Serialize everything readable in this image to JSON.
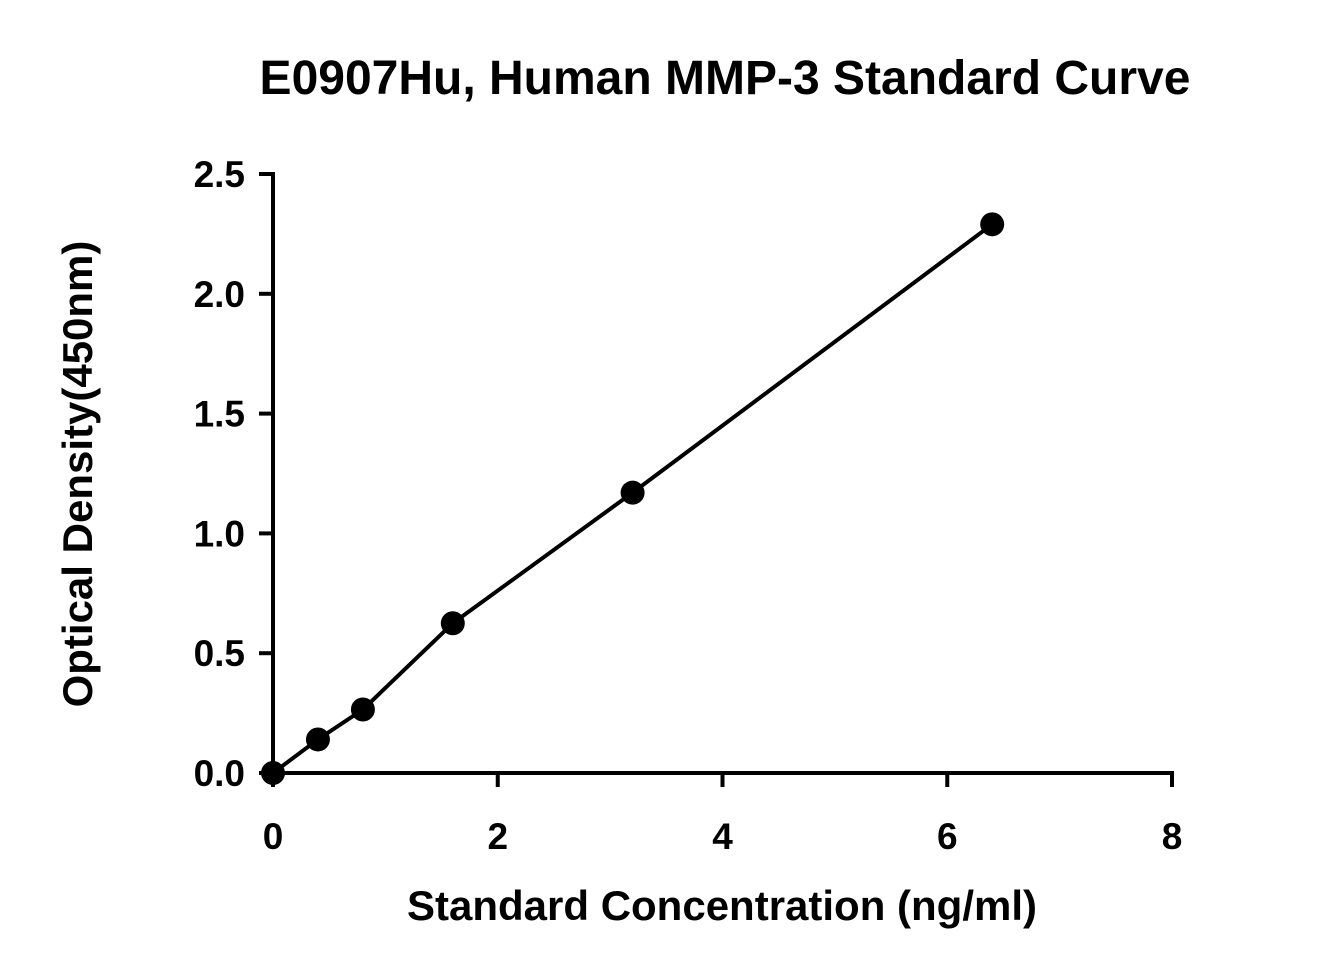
{
  "chart_data": {
    "type": "scatter",
    "title": "E0907Hu, Human MMP-3 Standard Curve",
    "xlabel": "Standard Concentration (ng/ml)",
    "ylabel": "Optical Density(450nm)",
    "xlim": [
      0,
      8
    ],
    "ylim": [
      0,
      2.5
    ],
    "x_ticks": [
      "0",
      "2",
      "4",
      "6",
      "8"
    ],
    "y_ticks": [
      "0.0",
      "0.5",
      "1.0",
      "1.5",
      "2.0",
      "2.5"
    ],
    "grid": false,
    "legend": "none",
    "series": [
      {
        "x": [
          0,
          0.4,
          0.8,
          1.6,
          3.2,
          6.4
        ],
        "y": [
          0.0,
          0.14,
          0.265,
          0.625,
          1.17,
          2.29
        ],
        "fit_line": true,
        "color": "#000000"
      }
    ]
  }
}
